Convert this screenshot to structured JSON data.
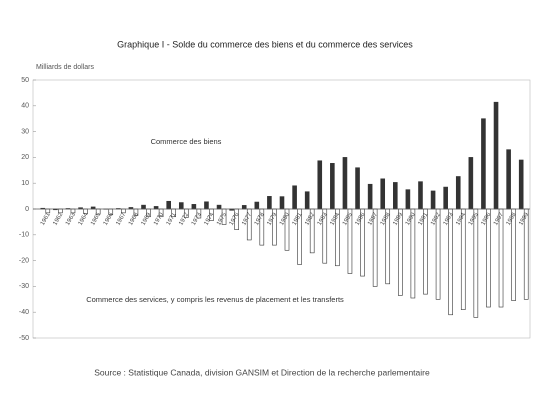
{
  "chart_data": {
    "type": "bar",
    "title": "Graphique I - Solde du commerce des biens et du commerce des services",
    "y_label": "Milliards de dollars",
    "source": "Source : Statistique Canada, division GANSIM et Direction de la recherche parlementaire",
    "categories": [
      "1961",
      "1962",
      "1963",
      "1964",
      "1965",
      "1966",
      "1967",
      "1968",
      "1969",
      "1970",
      "1971",
      "1972",
      "1973",
      "1974",
      "1975",
      "1976",
      "1977",
      "1978",
      "1979",
      "1980",
      "1981",
      "1982",
      "1983",
      "1984",
      "1985",
      "1986",
      "1987",
      "1988",
      "1989",
      "1990",
      "1991",
      "1992",
      "1993",
      "1994",
      "1995",
      "1996",
      "1997",
      "1998",
      "1999"
    ],
    "series": [
      {
        "name": "Commerce des biens",
        "color": "#333333",
        "values": [
          0.3,
          -0.3,
          0.2,
          0.5,
          0.8,
          -0.1,
          0.2,
          0.6,
          1.5,
          1.0,
          3.0,
          2.5,
          1.8,
          2.8,
          1.5,
          -0.5,
          1.4,
          2.7,
          4.9,
          4.8,
          9.0,
          6.7,
          18.7,
          17.7,
          20.0,
          16.0,
          9.6,
          11.7,
          10.3,
          7.5,
          10.6,
          7.0,
          8.5,
          12.6,
          20.0,
          35.0,
          41.4,
          23.0,
          19.0
        ]
      },
      {
        "name": "Commerce des services, y compris les revenus de placement et les transferts",
        "color": "#ffffff",
        "values": [
          -1.5,
          -1.5,
          -1.5,
          -1.8,
          -2,
          -2.2,
          -1.5,
          -2.5,
          -3,
          -3,
          -3,
          -3.3,
          -3.5,
          -4.5,
          -6,
          -8,
          -12,
          -14,
          -14,
          -16,
          -21.5,
          -17,
          -21,
          -22,
          -25,
          -26,
          -30,
          -29,
          -33.5,
          -34.5,
          -33,
          -35,
          -41,
          -39,
          -42,
          -38,
          -38,
          -35.5,
          -35
        ]
      }
    ],
    "ylim": [
      -50,
      50
    ],
    "yticks": [
      -50,
      -40,
      -30,
      -20,
      -10,
      0,
      10,
      20,
      30,
      40,
      50
    ]
  }
}
